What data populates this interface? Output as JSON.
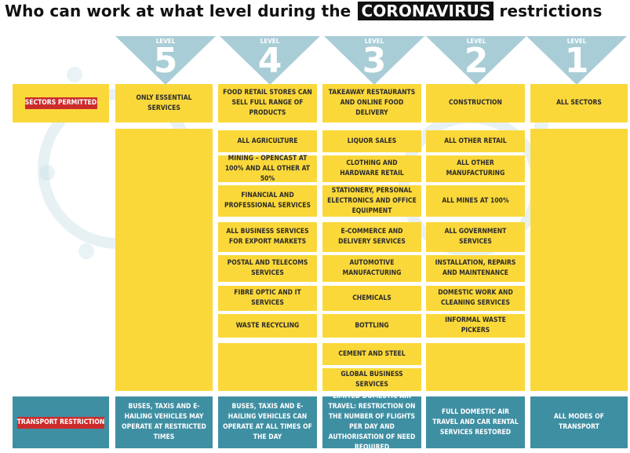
{
  "title": {
    "text": "Who can work at what level during the",
    "highlight": "CORONAVIRUS",
    "suffix": "restrictions"
  },
  "colors": {
    "yellow": "#FBD83A",
    "teal": "#3f8fa3",
    "red": "#cc2b2b",
    "arrow": "#a9cdd6"
  },
  "levels": [
    {
      "word": "LEVEL",
      "number": "5"
    },
    {
      "word": "LEVEL",
      "number": "4"
    },
    {
      "word": "LEVEL",
      "number": "3"
    },
    {
      "word": "LEVEL",
      "number": "2"
    },
    {
      "word": "LEVEL",
      "number": "1"
    }
  ],
  "row_labels": {
    "sectors": "SECTORS PERMITTED",
    "transport": "TRANSPORT RESTRICTION"
  },
  "headers": [
    "ONLY ESSENTIAL SERVICES",
    "FOOD RETAIL STORES CAN SELL FULL RANGE OF PRODUCTS",
    "TAKEAWAY RESTAURANTS AND ONLINE FOOD DELIVERY",
    "CONSTRUCTION",
    "ALL SECTORS"
  ],
  "level4_items": [
    "ALL AGRICULTURE",
    "MINING – OPENCAST AT 100% AND ALL OTHER AT 50%",
    "FINANCIAL AND PROFESSIONAL SERVICES",
    "ALL BUSINESS SERVICES FOR EXPORT MARKETS",
    "POSTAL AND TELECOMS SERVICES",
    "FIBRE OPTIC AND IT SERVICES",
    "WASTE RECYCLING"
  ],
  "level3_items": [
    "LIQUOR SALES",
    "CLOTHING AND HARDWARE RETAIL",
    "STATIONERY, PERSONAL ELECTRONICS AND OFFICE EQUIPMENT",
    "E-COMMERCE AND DELIVERY SERVICES",
    "AUTOMOTIVE MANUFACTURING",
    "CHEMICALS",
    "BOTTLING",
    "CEMENT AND STEEL",
    "GLOBAL BUSINESS SERVICES"
  ],
  "level2_items": [
    "ALL OTHER RETAIL",
    "ALL OTHER MANUFACTURING",
    "ALL MINES AT 100%",
    "ALL GOVERNMENT SERVICES",
    "INSTALLATION, REPAIRS AND MAINTENANCE",
    "DOMESTIC WORK AND CLEANING SERVICES",
    "INFORMAL WASTE PICKERS"
  ],
  "transport": [
    "BUSES, TAXIS AND E-HAILING VEHICLES MAY OPERATE AT RESTRICTED TIMES",
    "BUSES, TAXIS AND E-HAILING VEHICLES CAN OPERATE AT ALL TIMES OF THE DAY",
    "LIMITED DOMESTIC AIR TRAVEL: RESTRICTION ON THE NUMBER OF FLIGHTS PER DAY AND AUTHORISATION OF NEED REQUIRED",
    "FULL DOMESTIC AIR TRAVEL AND CAR RENTAL SERVICES RESTORED",
    "ALL MODES OF TRANSPORT"
  ]
}
